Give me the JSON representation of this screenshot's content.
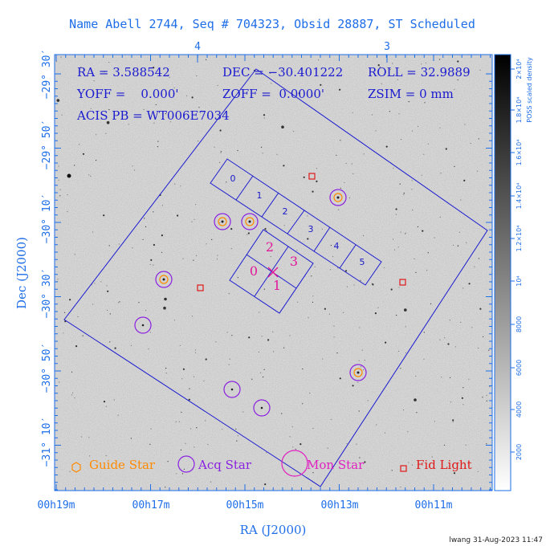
{
  "title": "Name Abell 2744, Seq # 704323, Obsid 28887, ST Scheduled",
  "info": {
    "ra": "RA = 3.588542",
    "dec": "DEC = −30.401222",
    "roll": "ROLL = 32.9889",
    "yoff": "YOFF =    0.000'",
    "zoff": "ZOFF =  0.0000'",
    "zsim": "ZSIM = 0 mm",
    "acis_pb": "ACIS PB = WT006E7034"
  },
  "top_axis_labels": [
    "4",
    "3"
  ],
  "x_axis": {
    "title": "RA (J2000)",
    "ticks": [
      "00h19m",
      "00h17m",
      "00h15m",
      "00h13m",
      "00h11m"
    ]
  },
  "y_axis": {
    "title": "Dec (J2000)",
    "ticks": [
      "−29° 30′",
      "−29° 50′",
      "−30° 10′",
      "−30° 30′",
      "−30° 50′",
      "−31° 10′"
    ]
  },
  "colorbar": {
    "title": "POSS scaled density",
    "labels": [
      "2000",
      "4000",
      "6000",
      "8000",
      "10⁴",
      "1.2×10⁴",
      "1.4×10⁴",
      "1.6×10⁴",
      "1.8×10⁴",
      "2×10⁴"
    ]
  },
  "acis_s_chips": [
    "0",
    "1",
    "2",
    "3",
    "4",
    "5"
  ],
  "acis_i_chips": [
    "0",
    "1",
    "2",
    "3"
  ],
  "legend": {
    "guide_star": "Guide Star",
    "acq_star": "Acq Star",
    "mon_star": "Mon Star",
    "fid_light": "Fid Light"
  },
  "colors": {
    "axis": "#1e6ee8",
    "outline": "#1a1ad0",
    "guide": "#ff8a00",
    "acq": "#8a20e0",
    "mon": "#e020c0",
    "fid": "#e01818",
    "aimpoint": "#e0189a"
  },
  "footer": "lwang 31-Aug-2023 11:47"
}
